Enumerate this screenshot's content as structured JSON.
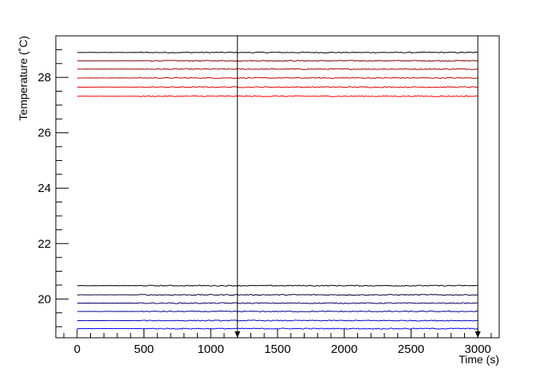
{
  "chart_data": {
    "type": "line",
    "title": "",
    "xlabel": "Time (s)",
    "ylabel": "Temperature (˚C)",
    "xlim": [
      -160,
      3160
    ],
    "ylim": [
      18.6,
      29.5
    ],
    "x_ticks": [
      0,
      500,
      1000,
      1500,
      2000,
      2500,
      3000
    ],
    "y_ticks": [
      20,
      22,
      24,
      26,
      28
    ],
    "x_tick_labels": [
      "0",
      "500",
      "1000",
      "1500",
      "2000",
      "2500",
      "3000"
    ],
    "y_tick_labels": [
      "20",
      "22",
      "24",
      "26",
      "28"
    ],
    "x_range": [
      0,
      3000
    ],
    "grid": false,
    "markers": [
      {
        "x": 1200,
        "style": "vertical-line-arrow"
      },
      {
        "x": 3000,
        "style": "vertical-line-arrow"
      }
    ],
    "series": [
      {
        "color": "#000000",
        "value": 28.9
      },
      {
        "color": "#800000",
        "value": 28.6
      },
      {
        "color": "#a00000",
        "value": 28.3
      },
      {
        "color": "#c00000",
        "value": 27.98
      },
      {
        "color": "#e00000",
        "value": 27.65
      },
      {
        "color": "#ff0000",
        "value": 27.32
      },
      {
        "color": "#000000",
        "value": 20.48
      },
      {
        "color": "#000030",
        "value": 20.15
      },
      {
        "color": "#000060",
        "value": 19.85
      },
      {
        "color": "#000090",
        "value": 19.55
      },
      {
        "color": "#0000c0",
        "value": 19.22
      },
      {
        "color": "#0000ff",
        "value": 18.93
      }
    ]
  }
}
